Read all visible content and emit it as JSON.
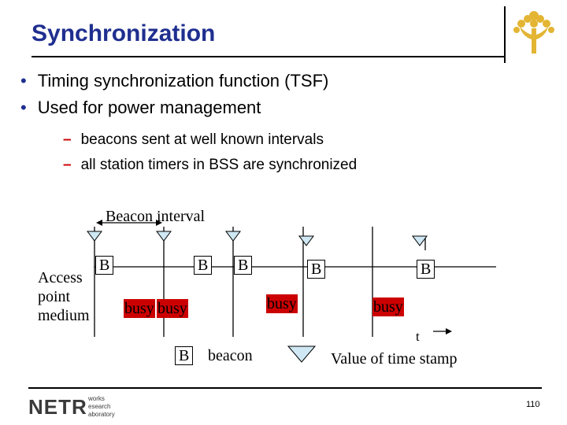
{
  "title": "Synchronization",
  "bullets": [
    "Timing synchronization function (TSF)",
    "Used for power management"
  ],
  "subbullets": [
    "beacons sent at well known intervals",
    "all station timers in BSS are synchronized"
  ],
  "diagram": {
    "beacon_interval_label": "Beacon interval",
    "medium_label_lines": [
      "Access",
      "point",
      "medium"
    ],
    "beacon_marker": "B",
    "busy_label": "busy",
    "time_axis_label": "t",
    "legend_beacon": "beacon",
    "legend_timestamp": "Value of time stamp"
  },
  "footer": {
    "logo_letters": "NETR",
    "logo_words": [
      "works",
      "esearch",
      "aboratory"
    ],
    "page_number": "110"
  },
  "colors": {
    "title": "#1f2f8f",
    "busy": "#cc0000",
    "dash": "#cc0000",
    "logo_tree": "#e3b533"
  }
}
